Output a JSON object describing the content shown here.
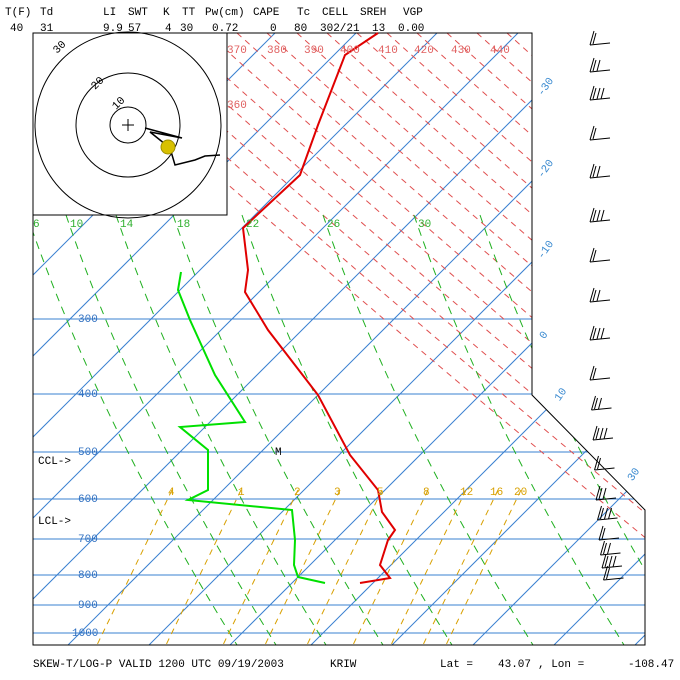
{
  "header": {
    "labels": [
      "T(F)",
      "Td",
      "LI",
      "SWT",
      "K",
      "TT",
      "Pw(cm)",
      "CAPE",
      "Tc",
      "CELL",
      "SREH",
      "VGP"
    ],
    "values": [
      "40",
      "31",
      "9.9",
      "57",
      "4",
      "30",
      "0.72",
      "0",
      "80",
      "302/21",
      "13",
      "0.00"
    ]
  },
  "hodograph": {
    "rings": [
      "30",
      "20",
      "10"
    ]
  },
  "theta_labels": [
    "370",
    "380",
    "390",
    "400",
    "410",
    "420",
    "430",
    "440",
    "360"
  ],
  "mixing_top": [
    "6",
    "10",
    "14",
    "18",
    "22",
    "26",
    "30"
  ],
  "mixing_bottom": [
    "4",
    "1",
    "2",
    "3",
    "5",
    "8",
    "12",
    "16",
    "20"
  ],
  "pressure_labels": [
    "300",
    "400",
    "500",
    "600",
    "700",
    "800",
    "900",
    "1000"
  ],
  "temp_labels": [
    "-30",
    "-20",
    "-10",
    "0",
    "10",
    "30"
  ],
  "markers": {
    "ccl": "CCL->",
    "lcl": "LCL->",
    "m": "M"
  },
  "footer": {
    "title": "SKEW-T/LOG-P VALID 1200 UTC 09/19/2003",
    "station": "KRIW",
    "lat_label": "Lat =",
    "lat": "43.07",
    "lon_label": ", Lon =",
    "lon": "-108.47"
  }
}
